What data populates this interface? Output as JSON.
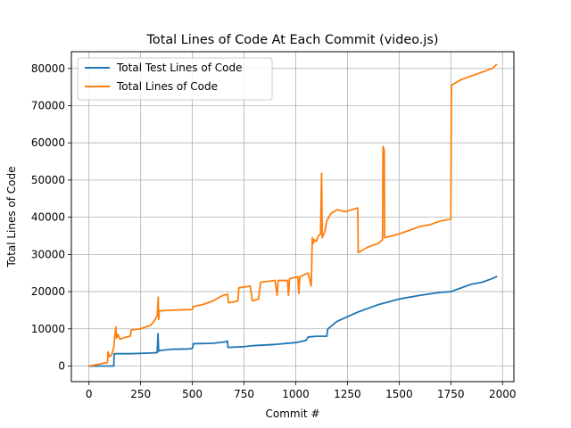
{
  "chart_data": {
    "type": "line",
    "title": "Total Lines of Code At Each Commit (video.js)",
    "xlabel": "Commit #",
    "ylabel": "Total Lines of Code",
    "xlim": [
      -85,
      2055
    ],
    "ylim": [
      -4200,
      84500
    ],
    "xticks": [
      0,
      250,
      500,
      750,
      1000,
      1250,
      1500,
      1750,
      2000
    ],
    "yticks": [
      0,
      10000,
      20000,
      30000,
      40000,
      50000,
      60000,
      70000,
      80000
    ],
    "grid": true,
    "legend_position": "top-left",
    "series": [
      {
        "name": "Total Test Lines of Code",
        "color": "#1f77b4",
        "points": [
          [
            0,
            0
          ],
          [
            120,
            0
          ],
          [
            122,
            3300
          ],
          [
            200,
            3300
          ],
          [
            300,
            3500
          ],
          [
            330,
            3600
          ],
          [
            334,
            8700
          ],
          [
            337,
            4000
          ],
          [
            345,
            4200
          ],
          [
            400,
            4500
          ],
          [
            480,
            4600
          ],
          [
            500,
            4700
          ],
          [
            505,
            6000
          ],
          [
            600,
            6100
          ],
          [
            660,
            6500
          ],
          [
            670,
            6700
          ],
          [
            672,
            5000
          ],
          [
            750,
            5200
          ],
          [
            800,
            5500
          ],
          [
            900,
            5800
          ],
          [
            1000,
            6300
          ],
          [
            1050,
            6900
          ],
          [
            1060,
            7800
          ],
          [
            1100,
            8000
          ],
          [
            1150,
            8000
          ],
          [
            1155,
            10000
          ],
          [
            1200,
            12000
          ],
          [
            1260,
            13500
          ],
          [
            1300,
            14500
          ],
          [
            1350,
            15500
          ],
          [
            1400,
            16500
          ],
          [
            1500,
            18000
          ],
          [
            1550,
            18500
          ],
          [
            1600,
            19000
          ],
          [
            1700,
            19800
          ],
          [
            1750,
            20000
          ],
          [
            1800,
            21000
          ],
          [
            1850,
            22000
          ],
          [
            1900,
            22500
          ],
          [
            1950,
            23500
          ],
          [
            1970,
            24000
          ]
        ]
      },
      {
        "name": "Total Lines of Code",
        "color": "#ff7f0e",
        "points": [
          [
            0,
            0
          ],
          [
            50,
            500
          ],
          [
            90,
            1000
          ],
          [
            92,
            3800
          ],
          [
            100,
            2500
          ],
          [
            110,
            3000
          ],
          [
            120,
            5000
          ],
          [
            125,
            8000
          ],
          [
            130,
            10500
          ],
          [
            133,
            7500
          ],
          [
            140,
            8500
          ],
          [
            150,
            7200
          ],
          [
            180,
            7800
          ],
          [
            200,
            8000
          ],
          [
            205,
            9700
          ],
          [
            250,
            10000
          ],
          [
            300,
            11000
          ],
          [
            320,
            12500
          ],
          [
            330,
            13500
          ],
          [
            335,
            18500
          ],
          [
            337,
            12500
          ],
          [
            340,
            14800
          ],
          [
            400,
            15000
          ],
          [
            500,
            15200
          ],
          [
            505,
            16000
          ],
          [
            550,
            16500
          ],
          [
            600,
            17500
          ],
          [
            630,
            18500
          ],
          [
            650,
            19000
          ],
          [
            670,
            19300
          ],
          [
            675,
            17000
          ],
          [
            720,
            17500
          ],
          [
            725,
            21000
          ],
          [
            780,
            21500
          ],
          [
            790,
            17500
          ],
          [
            820,
            18000
          ],
          [
            830,
            22500
          ],
          [
            900,
            23000
          ],
          [
            910,
            19000
          ],
          [
            915,
            23000
          ],
          [
            960,
            23000
          ],
          [
            965,
            19000
          ],
          [
            970,
            23500
          ],
          [
            1010,
            24000
          ],
          [
            1015,
            19500
          ],
          [
            1020,
            24000
          ],
          [
            1060,
            25000
          ],
          [
            1075,
            21500
          ],
          [
            1080,
            34500
          ],
          [
            1085,
            33000
          ],
          [
            1090,
            34000
          ],
          [
            1100,
            33500
          ],
          [
            1110,
            35000
          ],
          [
            1120,
            35500
          ],
          [
            1125,
            51800
          ],
          [
            1128,
            34500
          ],
          [
            1140,
            36000
          ],
          [
            1150,
            39000
          ],
          [
            1170,
            41000
          ],
          [
            1200,
            42000
          ],
          [
            1240,
            41500
          ],
          [
            1300,
            42500
          ],
          [
            1302,
            30500
          ],
          [
            1350,
            32000
          ],
          [
            1400,
            33000
          ],
          [
            1420,
            34000
          ],
          [
            1422,
            59000
          ],
          [
            1428,
            58000
          ],
          [
            1430,
            34500
          ],
          [
            1500,
            35500
          ],
          [
            1550,
            36500
          ],
          [
            1600,
            37500
          ],
          [
            1650,
            38000
          ],
          [
            1700,
            39000
          ],
          [
            1750,
            39500
          ],
          [
            1753,
            75500
          ],
          [
            1800,
            77000
          ],
          [
            1850,
            78000
          ],
          [
            1900,
            79000
          ],
          [
            1950,
            80000
          ],
          [
            1970,
            81000
          ]
        ]
      }
    ]
  }
}
